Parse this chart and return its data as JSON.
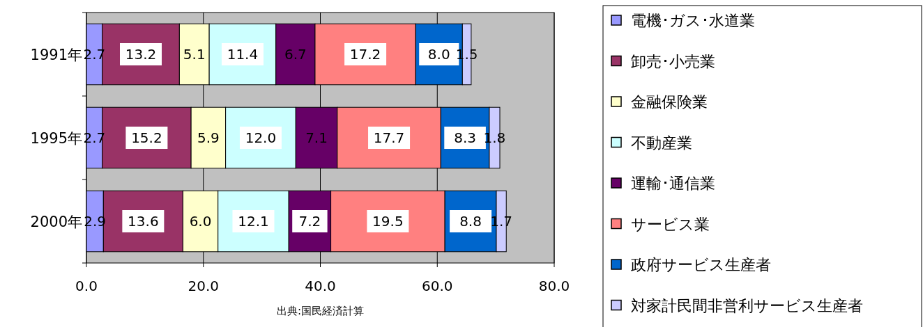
{
  "chart_data": {
    "type": "bar",
    "orientation": "horizontal",
    "stacked": true,
    "categories": [
      "1991年",
      "1995年",
      "2000年"
    ],
    "series": [
      {
        "name": "電機･ガス･水道業",
        "color": "#9999ff",
        "values": [
          2.7,
          2.7,
          2.9
        ],
        "value_labels": [
          "2.7",
          "2.7",
          "2.9"
        ]
      },
      {
        "name": "卸売･小売業",
        "color": "#993366",
        "values": [
          13.2,
          15.2,
          13.6
        ],
        "value_labels": [
          "13.2",
          "15.2",
          "13.6"
        ]
      },
      {
        "name": "金融保険業",
        "color": "#ffffcc",
        "values": [
          5.1,
          5.9,
          6.0
        ],
        "value_labels": [
          "5.1",
          "5.9",
          "6.0"
        ]
      },
      {
        "name": "不動産業",
        "color": "#ccffff",
        "values": [
          11.4,
          12.0,
          12.1
        ],
        "value_labels": [
          "11.4",
          "12.0",
          "12.1"
        ]
      },
      {
        "name": "運輸･通信業",
        "color": "#660066",
        "values": [
          6.7,
          7.1,
          7.2
        ],
        "value_labels": [
          "6.7",
          "7.1",
          "7.2"
        ]
      },
      {
        "name": "サービス業",
        "color": "#ff8080",
        "values": [
          17.2,
          17.7,
          19.5
        ],
        "value_labels": [
          "17.2",
          "17.7",
          "19.5"
        ]
      },
      {
        "name": "政府サービス生産者",
        "color": "#0066cc",
        "values": [
          8.0,
          8.3,
          8.8
        ],
        "value_labels": [
          "8.0",
          "8.3",
          "8.8"
        ]
      },
      {
        "name": "対家計民間非営利サービス生産者",
        "color": "#ccccff",
        "values": [
          1.5,
          1.8,
          1.7
        ],
        "value_labels": [
          "1.5",
          "1.8",
          "1.7"
        ]
      }
    ],
    "xlim": [
      0,
      80
    ],
    "xticks": [
      {
        "value": 0,
        "label": "0.0"
      },
      {
        "value": 20,
        "label": "20.0"
      },
      {
        "value": 40,
        "label": "40.0"
      },
      {
        "value": 60,
        "label": "60.0"
      },
      {
        "value": 80,
        "label": "80.0"
      }
    ],
    "grid": "x",
    "legend": "right",
    "annotations": [
      "出典:国民経済計算"
    ]
  }
}
